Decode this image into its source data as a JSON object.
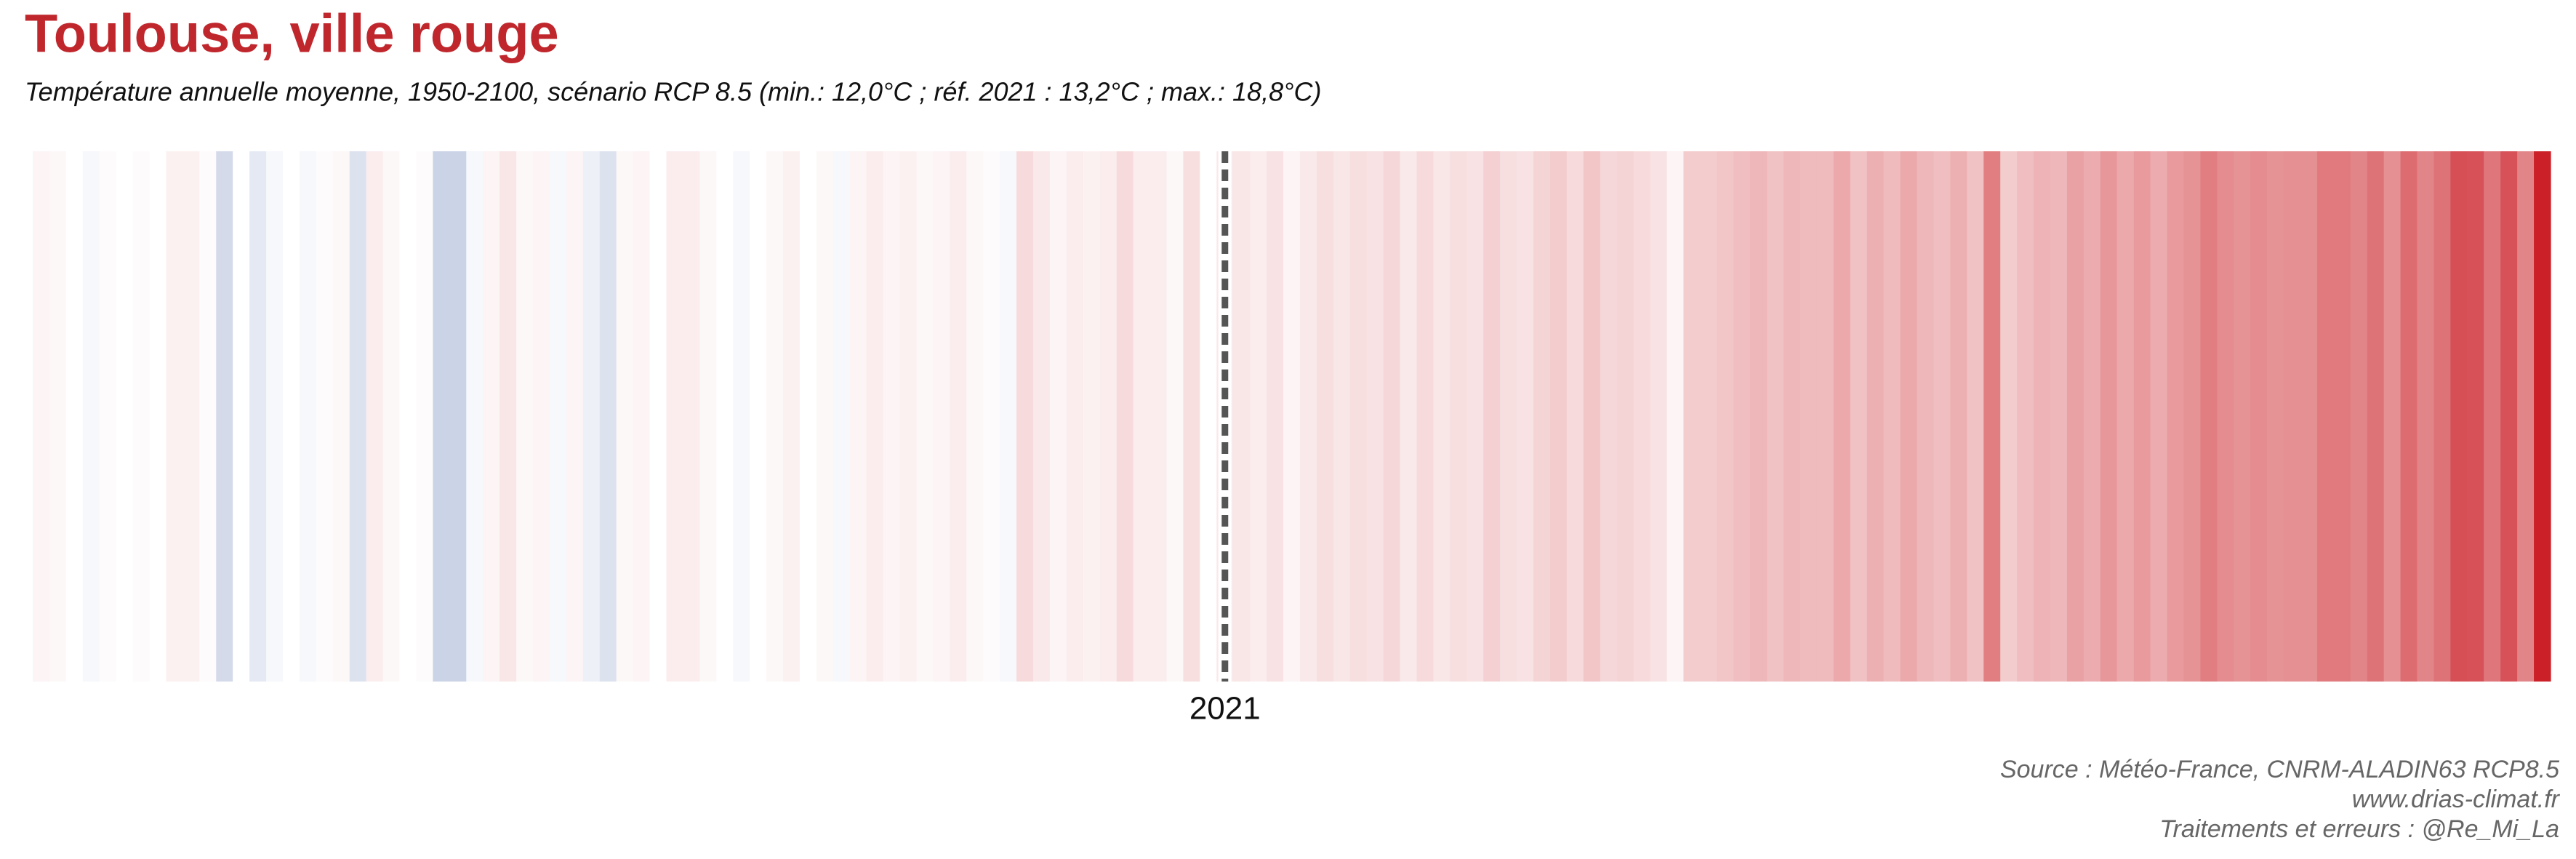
{
  "chart_data": {
    "type": "stripes",
    "title": "Toulouse, ville rouge",
    "subtitle": "Température annuelle moyenne, 1950-2100, scénario RCP 8.5 (min.: 12,0°C ; réf. 2021 : 13,2°C ; max.: 18,8°C)",
    "x": [
      1950,
      1951,
      1952,
      1953,
      1954,
      1955,
      1956,
      1957,
      1958,
      1959,
      1960,
      1961,
      1962,
      1963,
      1964,
      1965,
      1966,
      1967,
      1968,
      1969,
      1970,
      1971,
      1972,
      1973,
      1974,
      1975,
      1976,
      1977,
      1978,
      1979,
      1980,
      1981,
      1982,
      1983,
      1984,
      1985,
      1986,
      1987,
      1988,
      1989,
      1990,
      1991,
      1992,
      1993,
      1994,
      1995,
      1996,
      1997,
      1998,
      1999,
      2000,
      2001,
      2002,
      2003,
      2004,
      2005,
      2006,
      2007,
      2008,
      2009,
      2010,
      2011,
      2012,
      2013,
      2014,
      2015,
      2016,
      2017,
      2018,
      2019,
      2020,
      2021,
      2022,
      2023,
      2024,
      2025,
      2026,
      2027,
      2028,
      2029,
      2030,
      2031,
      2032,
      2033,
      2034,
      2035,
      2036,
      2037,
      2038,
      2039,
      2040,
      2041,
      2042,
      2043,
      2044,
      2045,
      2046,
      2047,
      2048,
      2049,
      2050,
      2051,
      2052,
      2053,
      2054,
      2055,
      2056,
      2057,
      2058,
      2059,
      2060,
      2061,
      2062,
      2063,
      2064,
      2065,
      2066,
      2067,
      2068,
      2069,
      2070,
      2071,
      2072,
      2073,
      2074,
      2075,
      2076,
      2077,
      2078,
      2079,
      2080,
      2081,
      2082,
      2083,
      2084,
      2085,
      2086,
      2087,
      2088,
      2089,
      2090,
      2091,
      2092,
      2093,
      2094,
      2095,
      2096,
      2097,
      2098,
      2099,
      2100
    ],
    "values": [
      12.9,
      12.8,
      12.6,
      12.5,
      12.7,
      12.6,
      12.7,
      12.6,
      13.0,
      13.0,
      12.7,
      12.1,
      12.6,
      12.3,
      12.5,
      12.6,
      12.5,
      12.7,
      12.8,
      12.2,
      13.1,
      12.8,
      12.6,
      12.7,
      12.0,
      12.0,
      12.5,
      12.9,
      13.3,
      12.8,
      12.9,
      12.5,
      12.9,
      12.4,
      12.2,
      12.8,
      12.9,
      12.6,
      13.1,
      13.1,
      12.8,
      12.6,
      12.5,
      12.6,
      12.8,
      13.0,
      12.6,
      12.8,
      12.5,
      12.9,
      13.1,
      12.9,
      13.0,
      12.8,
      12.9,
      13.1,
      12.8,
      12.7,
      12.5,
      13.6,
      13.2,
      12.9,
      13.1,
      13.0,
      13.1,
      13.6,
      13.1,
      13.1,
      12.8,
      13.5,
      12.6,
      13.2,
      13.3,
      13.1,
      13.4,
      12.9,
      13.2,
      13.5,
      13.3,
      13.5,
      13.4,
      13.7,
      13.2,
      13.6,
      13.3,
      13.5,
      13.4,
      13.9,
      13.5,
      13.4,
      13.8,
      14.0,
      13.6,
      14.2,
      13.7,
      13.8,
      13.6,
      13.4,
      12.9,
      14.0,
      14.0,
      14.2,
      14.4,
      14.6,
      14.3,
      14.6,
      14.5,
      14.5,
      15.0,
      14.3,
      14.8,
      14.5,
      15.0,
      14.6,
      14.4,
      14.8,
      14.3,
      16.2,
      14.0,
      14.4,
      14.7,
      14.6,
      15.2,
      14.9,
      15.5,
      15.0,
      15.4,
      14.9,
      15.4,
      15.6,
      16.2,
      15.8,
      15.6,
      15.8,
      15.6,
      15.7,
      15.7,
      16.3,
      16.3,
      16.0,
      16.5,
      15.7,
      16.7,
      16.0,
      16.5,
      17.5,
      17.4,
      16.4,
      17.4,
      16.0,
      18.8
    ],
    "xlim": [
      1949.5,
      2100.5
    ],
    "xticks": [
      2021
    ],
    "clim": [
      12.0,
      18.8
    ],
    "cmid": 12.6,
    "colors": {
      "low": "#cbd3e6",
      "mid": "#ffffff",
      "high": "#cb2027"
    },
    "source": [
      "Source : Météo-France, CNRM-ALADIN63 RCP8.5",
      "www.drias-climat.fr",
      "Traitements et erreurs : @Re_Mi_La"
    ]
  }
}
